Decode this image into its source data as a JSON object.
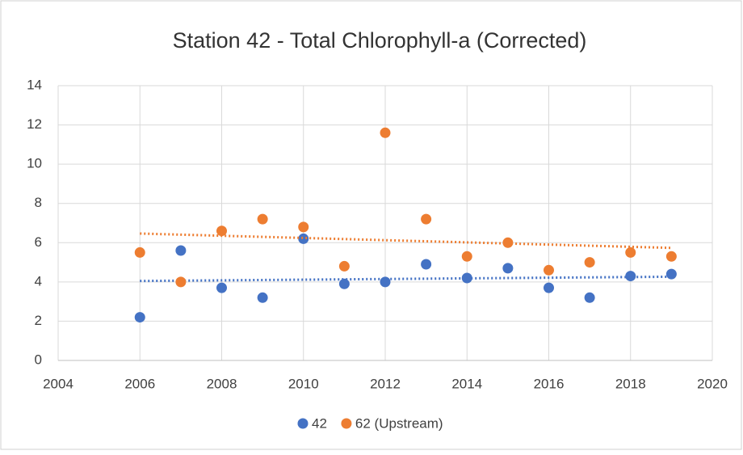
{
  "chart_data": {
    "type": "scatter",
    "title": "Station 42 - Total Chlorophyll-a (Corrected)",
    "x": [
      2006,
      2007,
      2008,
      2009,
      2010,
      2011,
      2012,
      2013,
      2014,
      2015,
      2016,
      2017,
      2018,
      2019
    ],
    "series": [
      {
        "name": "42",
        "color": "#4472c4",
        "values": [
          2.2,
          5.6,
          3.7,
          3.2,
          6.2,
          3.9,
          4.0,
          4.9,
          4.2,
          4.7,
          3.7,
          3.2,
          4.3,
          4.4
        ]
      },
      {
        "name": "62 (Upstream)",
        "color": "#ed7d31",
        "values": [
          5.5,
          4.0,
          6.6,
          7.2,
          6.8,
          4.8,
          11.6,
          7.2,
          5.3,
          6.0,
          4.6,
          5.0,
          5.5,
          5.3
        ]
      }
    ],
    "xlim": [
      2004,
      2020
    ],
    "xticks": [
      2004,
      2006,
      2008,
      2010,
      2012,
      2014,
      2016,
      2018,
      2020
    ],
    "ylim": [
      0,
      14
    ],
    "yticks": [
      0,
      2,
      4,
      6,
      8,
      10,
      12,
      14
    ],
    "grid": true,
    "trendline": "linear",
    "legend": "bottom"
  }
}
